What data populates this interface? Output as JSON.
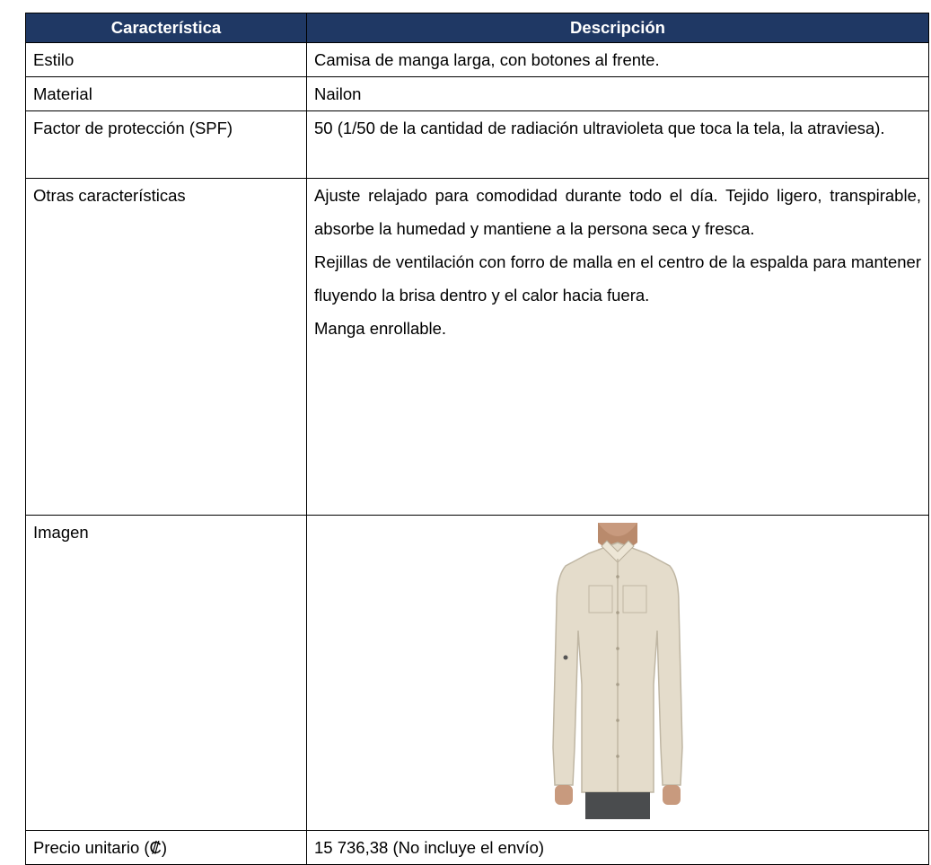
{
  "table": {
    "header": [
      "Característica",
      "Descripción"
    ],
    "rows": [
      {
        "feature": "Estilo",
        "description": [
          "Camisa de manga larga, con botones al frente."
        ]
      },
      {
        "feature": "Material",
        "description": [
          "Nailon"
        ]
      },
      {
        "feature": "Factor de protección (SPF)",
        "description": [
          "50 (1/50 de la cantidad de radiación ultravioleta que toca la tela, la atraviesa)."
        ]
      },
      {
        "feature": "Otras características",
        "description": [
          "Ajuste relajado para comodidad durante todo el día. Tejido ligero, transpirable, absorbe la humedad y mantiene a la persona seca y fresca.",
          "Rejillas de ventilación con forro de malla en el centro de la espalda para mantener fluyendo la brisa dentro y el calor hacia fuera.",
          "Manga enrollable."
        ]
      },
      {
        "feature": "Imagen"
      },
      {
        "feature": "Precio unitario (₡)",
        "description": [
          "15 736,38 (No incluye el envío)"
        ]
      }
    ]
  }
}
